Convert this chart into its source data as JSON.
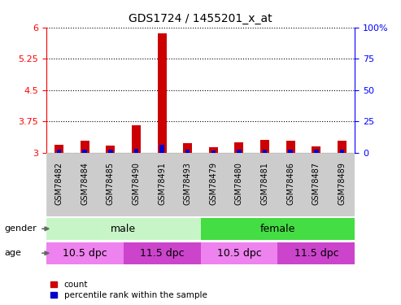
{
  "title": "GDS1724 / 1455201_x_at",
  "samples": [
    "GSM78482",
    "GSM78484",
    "GSM78485",
    "GSM78490",
    "GSM78491",
    "GSM78493",
    "GSM78479",
    "GSM78480",
    "GSM78481",
    "GSM78486",
    "GSM78487",
    "GSM78489"
  ],
  "red_values": [
    3.18,
    3.28,
    3.17,
    3.65,
    5.85,
    3.22,
    3.12,
    3.25,
    3.3,
    3.28,
    3.15,
    3.28
  ],
  "blue_values": [
    2.0,
    2.0,
    2.0,
    3.0,
    6.0,
    2.0,
    1.5,
    2.0,
    2.0,
    2.0,
    2.0,
    2.0
  ],
  "base_value": 3.0,
  "ylim": [
    3.0,
    6.0
  ],
  "yticks_left": [
    3.0,
    3.75,
    4.5,
    5.25,
    6.0
  ],
  "ytick_labels_left": [
    "3",
    "3.75",
    "4.5",
    "5.25",
    "6"
  ],
  "yticks_right": [
    0,
    25,
    50,
    75,
    100
  ],
  "ytick_labels_right": [
    "0",
    "25",
    "50",
    "75",
    "100%"
  ],
  "gender_groups": [
    {
      "label": "male",
      "start": 0,
      "end": 6,
      "color": "#c8f5c8"
    },
    {
      "label": "female",
      "start": 6,
      "end": 12,
      "color": "#44dd44"
    }
  ],
  "age_groups": [
    {
      "label": "10.5 dpc",
      "start": 0,
      "end": 3,
      "color": "#ee82ee"
    },
    {
      "label": "11.5 dpc",
      "start": 3,
      "end": 6,
      "color": "#cc44cc"
    },
    {
      "label": "10.5 dpc",
      "start": 6,
      "end": 9,
      "color": "#ee82ee"
    },
    {
      "label": "11.5 dpc",
      "start": 9,
      "end": 12,
      "color": "#cc44cc"
    }
  ],
  "red_color": "#cc0000",
  "blue_color": "#0000cc",
  "sample_bg_color": "#cccccc",
  "legend_red": "count",
  "legend_blue": "percentile rank within the sample",
  "grid_color": "#000000"
}
